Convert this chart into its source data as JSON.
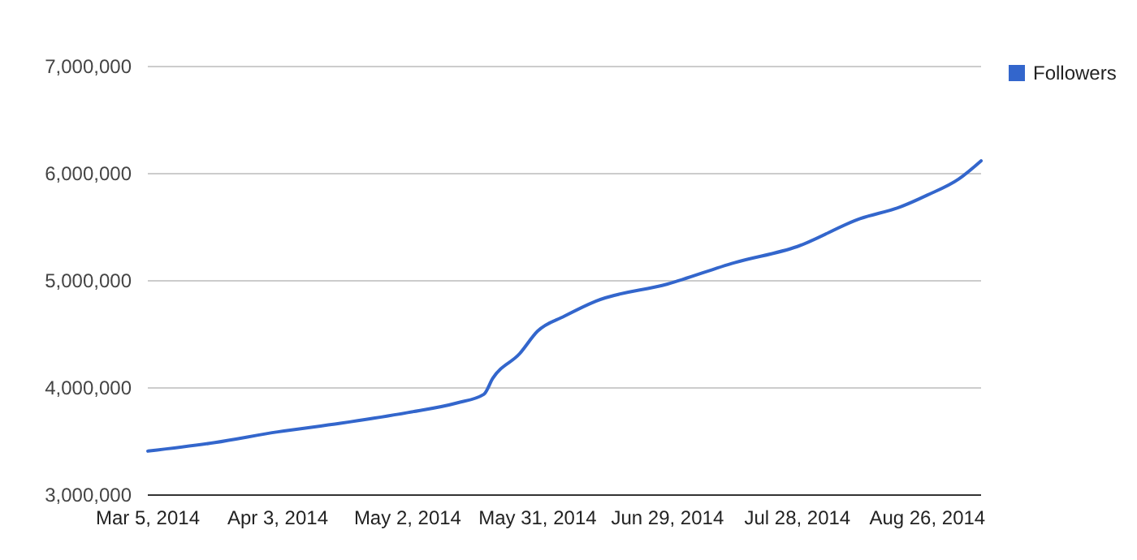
{
  "chart_data": {
    "type": "line",
    "x": [
      "2014-03-05",
      "2014-03-20",
      "2014-04-03",
      "2014-04-17",
      "2014-05-02",
      "2014-05-13",
      "2014-05-19",
      "2014-05-21",
      "2014-05-27",
      "2014-05-31",
      "2014-06-06",
      "2014-06-13",
      "2014-06-29",
      "2014-07-14",
      "2014-07-28",
      "2014-08-11",
      "2014-08-20",
      "2014-08-26",
      "2014-09-02",
      "2014-09-07"
    ],
    "series": [
      {
        "name": "Followers",
        "color": "#3366cc",
        "values": [
          3410000,
          3490000,
          3590000,
          3670000,
          3770000,
          3860000,
          3940000,
          4090000,
          4320000,
          4530000,
          4670000,
          4810000,
          4970000,
          5170000,
          5320000,
          5580000,
          5690000,
          5800000,
          5950000,
          6120000
        ]
      }
    ],
    "xlim": [
      "2014-03-05",
      "2014-09-07"
    ],
    "xticks": [
      {
        "value": "2014-03-05",
        "label": "Mar 5, 2014"
      },
      {
        "value": "2014-04-03",
        "label": "Apr 3, 2014"
      },
      {
        "value": "2014-05-02",
        "label": "May 2, 2014"
      },
      {
        "value": "2014-05-31",
        "label": "May 31, 2014"
      },
      {
        "value": "2014-06-29",
        "label": "Jun 29, 2014"
      },
      {
        "value": "2014-07-28",
        "label": "Jul 28, 2014"
      },
      {
        "value": "2014-08-26",
        "label": "Aug 26, 2014"
      }
    ],
    "ylim": [
      3000000,
      7000000
    ],
    "yticks": [
      {
        "value": 3000000,
        "label": "3,000,000"
      },
      {
        "value": 4000000,
        "label": "4,000,000"
      },
      {
        "value": 5000000,
        "label": "5,000,000"
      },
      {
        "value": 6000000,
        "label": "6,000,000"
      },
      {
        "value": 7000000,
        "label": "7,000,000"
      }
    ],
    "grid": "y",
    "legend": "right",
    "marker": "none",
    "line_style": "solid"
  }
}
